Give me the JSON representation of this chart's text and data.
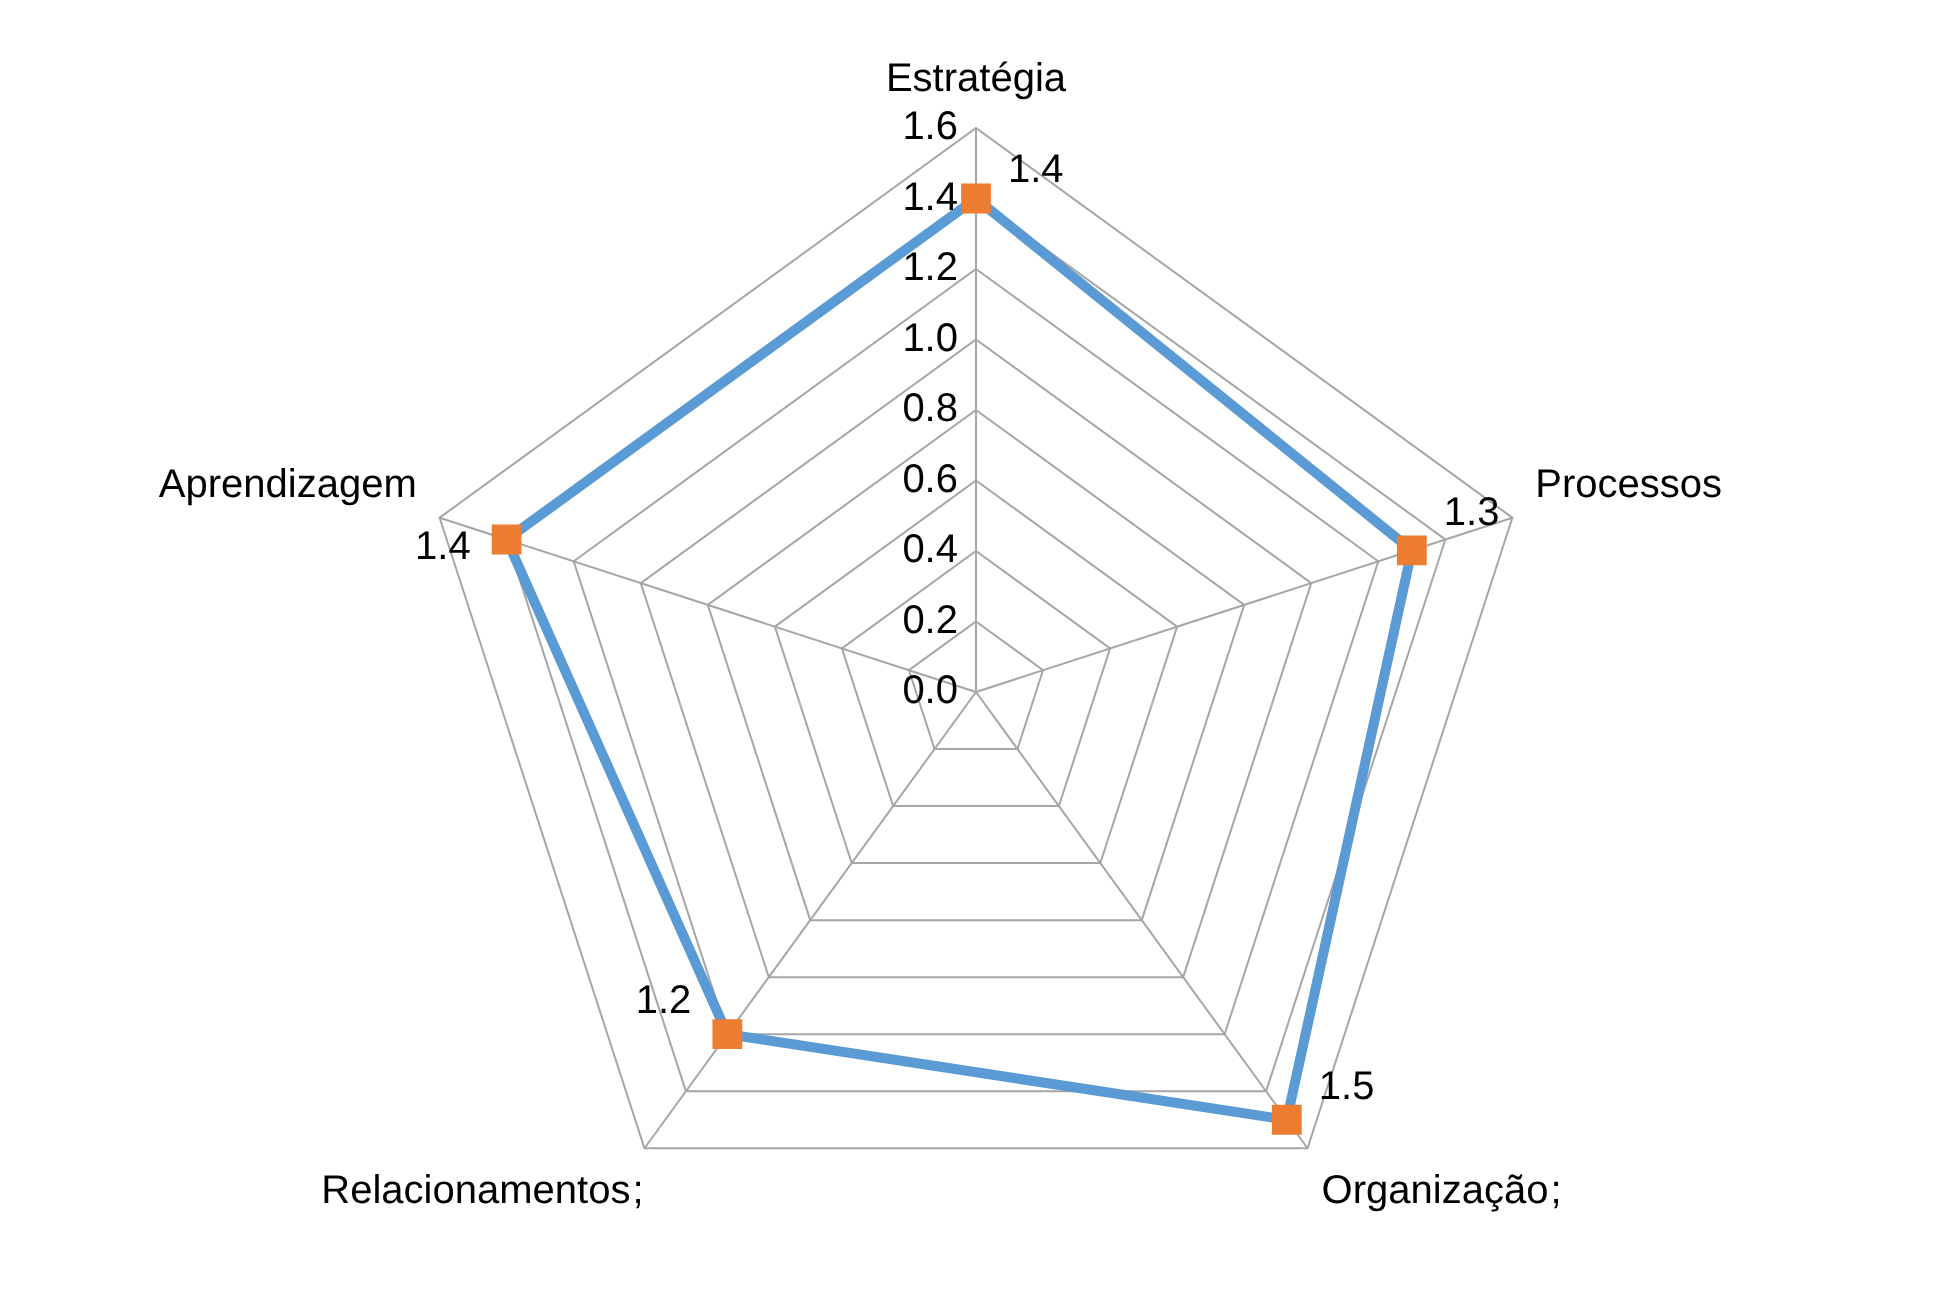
{
  "chart_data": {
    "type": "radar",
    "categories": [
      "Estratégia",
      "Processos",
      "Organização",
      "Relacionamentos",
      "Aprendizagem"
    ],
    "series": [
      {
        "color": "#5b9bd5",
        "values": [
          1.4,
          1.3,
          1.5,
          1.2,
          1.4
        ]
      }
    ],
    "ylim": [
      0,
      1.6
    ],
    "yticks": [
      {
        "value": 0,
        "label": "0.0"
      },
      {
        "value": 0.2,
        "label": "0.2"
      },
      {
        "value": 0.4,
        "label": "0.4"
      },
      {
        "value": 0.6,
        "label": "0.6"
      },
      {
        "value": 0.8,
        "label": "0.8"
      },
      {
        "value": 1,
        "label": "1.0"
      },
      {
        "value": 1.2,
        "label": "1.2"
      },
      {
        "value": 1.4,
        "label": "1.4"
      },
      {
        "value": 1.6,
        "label": "1.6"
      }
    ],
    "annotations": [
      {
        "text": ";",
        "x": "Organização"
      },
      {
        "text": ";",
        "x": "Relacionamentos"
      }
    ],
    "grid": true,
    "legend": false,
    "marker": "square",
    "data_labels": true
  }
}
